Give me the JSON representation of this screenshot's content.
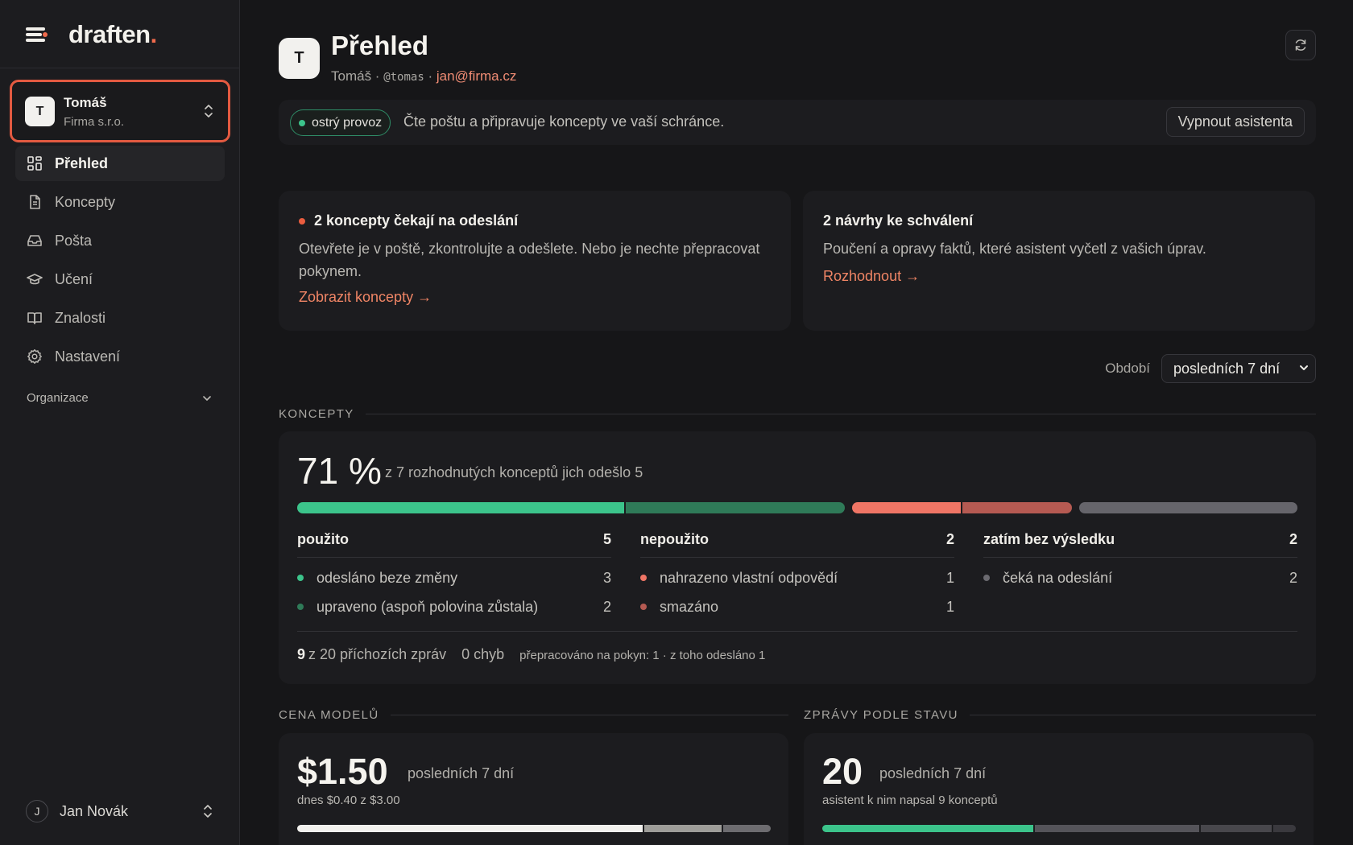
{
  "brand": {
    "name": "draften",
    "dot": "."
  },
  "account": {
    "initial": "T",
    "name": "Tomáš",
    "org": "Firma s.r.o."
  },
  "nav": {
    "items": [
      {
        "label": "Přehled",
        "icon": "dashboard-icon",
        "active": true
      },
      {
        "label": "Koncepty",
        "icon": "document-icon"
      },
      {
        "label": "Pošta",
        "icon": "inbox-icon"
      },
      {
        "label": "Učení",
        "icon": "graduation-cap-icon"
      },
      {
        "label": "Znalosti",
        "icon": "book-icon"
      },
      {
        "label": "Nastavení",
        "icon": "gear-icon"
      }
    ],
    "org_toggle": "Organizace"
  },
  "user": {
    "initial": "J",
    "name": "Jan Novák"
  },
  "header": {
    "avatar_initial": "T",
    "title": "Přehled",
    "sub_name": "Tomáš",
    "sub_sep1": " · ",
    "sub_handle": "@tomas",
    "sub_sep2": " · ",
    "sub_email": "jan@firma.cz"
  },
  "status": {
    "badge": "ostrý provoz",
    "text": "Čte poštu a připravuje koncepty ve vaší schránce.",
    "off_button": "Vypnout asistenta",
    "badge_color": "#3cc48b"
  },
  "alerts": {
    "drafts": {
      "title": "2 koncepty čekají na odeslání",
      "body": "Otevřete je v poště, zkontrolujte a odešlete. Nebo je nechte přepracovat pokynem.",
      "link": "Zobrazit koncepty →"
    },
    "suggestions": {
      "title": "2 návrhy ke schválení",
      "body": "Poučení a opravy faktů, které asistent vyčetl z vašich úprav.",
      "link": "Rozhodnout →"
    }
  },
  "period": {
    "label": "Období",
    "selected": "posledních 7 dní"
  },
  "concepts": {
    "section": "KONCEPTY",
    "percent": "71 %",
    "percent_sub": "z 7 rozhodnutých konceptů jich odešlo 5",
    "columns": [
      {
        "title": "použito",
        "count": "5",
        "rows": [
          {
            "label": "odesláno beze změny",
            "count": "3",
            "color": "#3cc48b"
          },
          {
            "label": "upraveno (aspoň polovina zůstala)",
            "count": "2",
            "color": "#2f7a58"
          }
        ]
      },
      {
        "title": "nepoužito",
        "count": "2",
        "rows": [
          {
            "label": "nahrazeno vlastní odpovědí",
            "count": "1",
            "color": "#ef7565"
          },
          {
            "label": "smazáno",
            "count": "1",
            "color": "#b55a52"
          }
        ]
      },
      {
        "title": "zatím bez výsledku",
        "count": "2",
        "rows": [
          {
            "label": "čeká na odeslání",
            "count": "2",
            "color": "#6b6a70"
          }
        ]
      }
    ],
    "foot": {
      "incoming_count": "9",
      "incoming_text": "z 20 příchozích zpráv",
      "errors": "0 chyb",
      "reworked": "přepracováno na pokyn: 1 · z toho odesláno 1"
    }
  },
  "cost": {
    "section": "CENA MODELŮ",
    "amount": "$1.50",
    "period": "posledních 7 dní",
    "today": "dnes $0.40 z $3.00"
  },
  "messages": {
    "section": "ZPRÁVY PODLE STAVU",
    "count": "20",
    "period": "posledních 7 dní",
    "sub": "asistent k nim napsal 9 konceptů"
  }
}
